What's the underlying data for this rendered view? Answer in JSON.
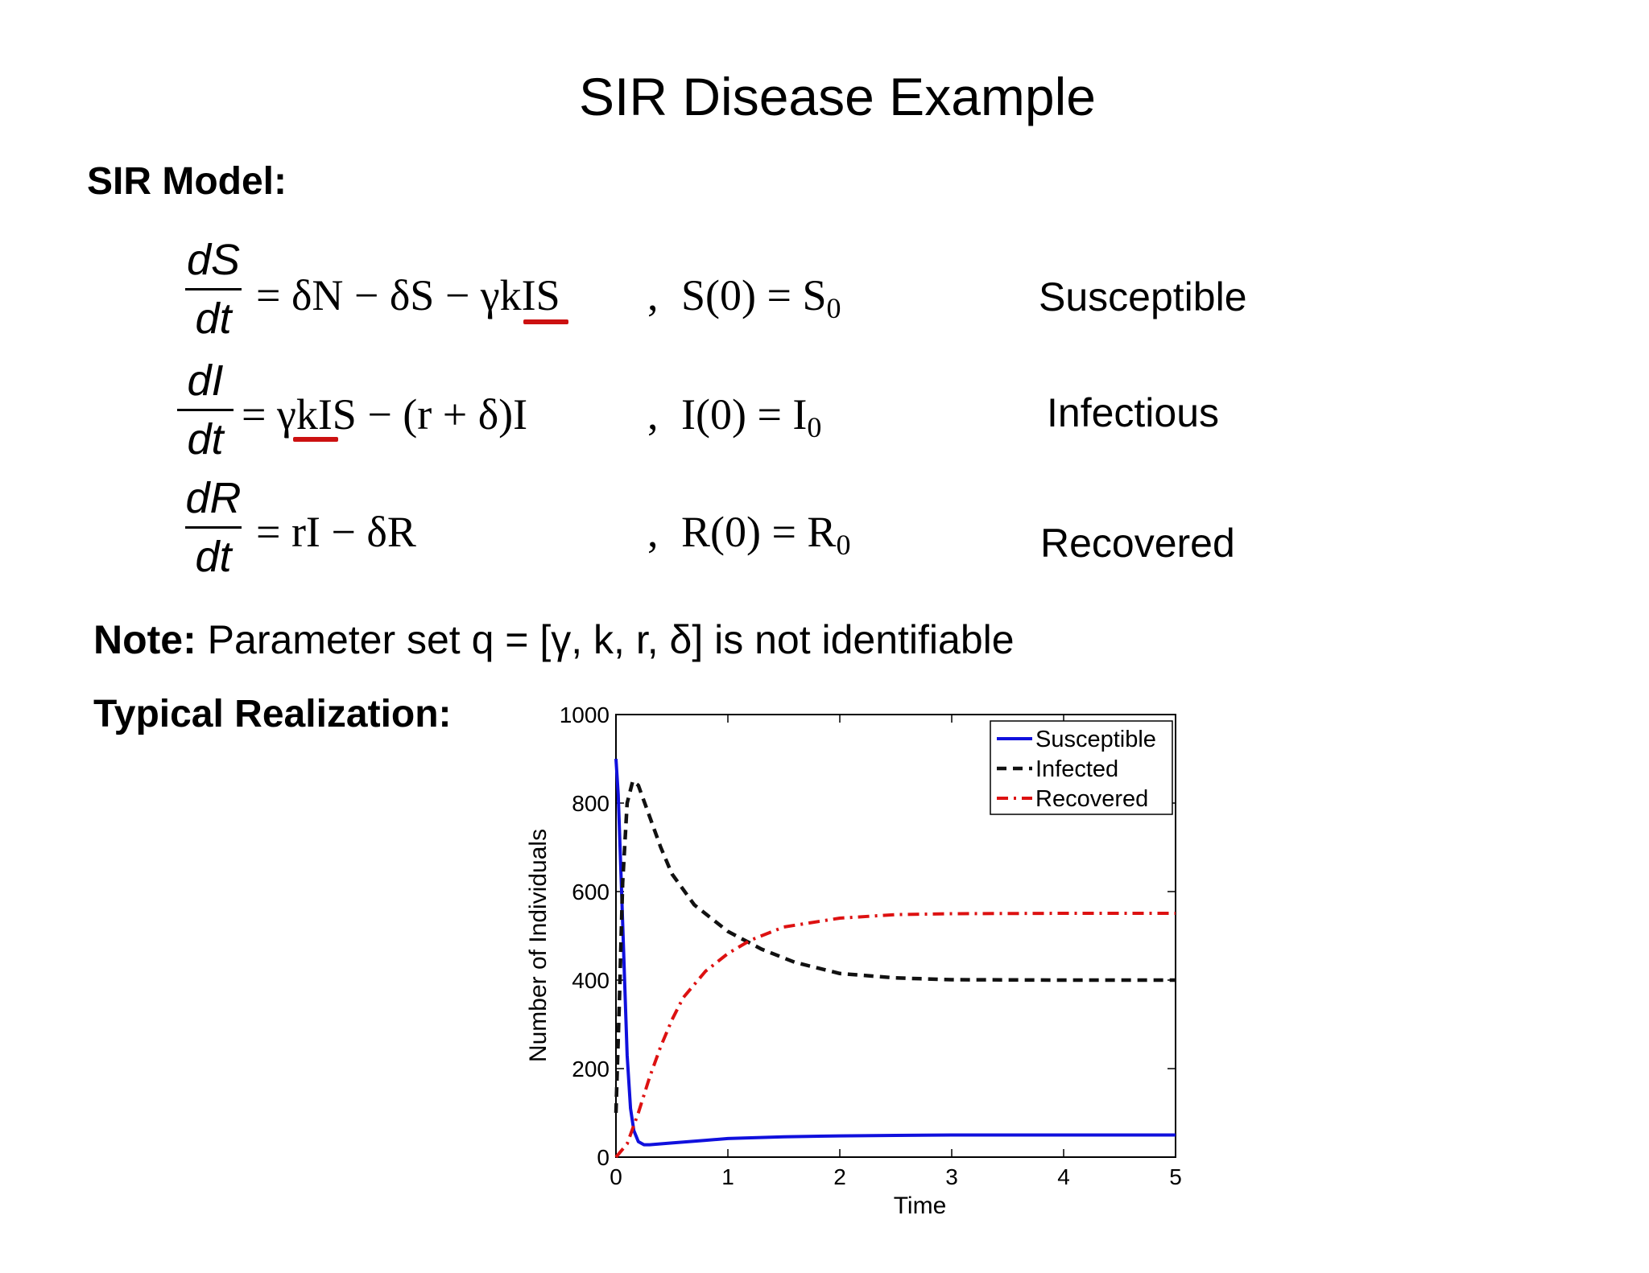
{
  "title": "SIR Disease Example",
  "model_heading": "SIR Model:",
  "equations": [
    {
      "num": "dS",
      "den": "dt",
      "rhs": "= δN − δS − γkIS",
      "ic_left": "S(0) = S",
      "ic_sub": "0",
      "label": "Susceptible"
    },
    {
      "num": "dI",
      "den": "dt",
      "rhs": "= γkIS − (r + δ)I",
      "ic_left": "I(0) = I",
      "ic_sub": "0",
      "label": "Infectious"
    },
    {
      "num": "dR",
      "den": "dt",
      "rhs": "= rI − δR",
      "ic_left": "R(0) = R",
      "ic_sub": "0",
      "label": "Recovered"
    }
  ],
  "separator": ",",
  "note": {
    "bold": "Note:",
    "text": "Parameter set q = [γ, k, r, δ] is not identifiable"
  },
  "realization_heading": "Typical Realization:",
  "colors": {
    "susceptible": "#1010dd",
    "infected": "#111111",
    "recovered": "#dd1111",
    "underline": "#cc1111"
  },
  "chart_data": {
    "type": "line",
    "xlabel": "Time",
    "ylabel": "Number of Individuals",
    "xlim": [
      0,
      5
    ],
    "ylim": [
      0,
      1000
    ],
    "xticks": [
      0,
      1,
      2,
      3,
      4,
      5
    ],
    "yticks": [
      0,
      200,
      400,
      600,
      800,
      1000
    ],
    "legend_position": "top-right",
    "series": [
      {
        "name": "Susceptible",
        "style": "solid",
        "color": "#1010dd",
        "x": [
          0,
          0.02,
          0.05,
          0.08,
          0.1,
          0.13,
          0.16,
          0.2,
          0.25,
          0.3,
          0.5,
          0.8,
          1,
          1.5,
          2,
          2.5,
          3,
          4,
          5
        ],
        "y": [
          900,
          820,
          600,
          380,
          230,
          110,
          60,
          35,
          28,
          28,
          32,
          38,
          42,
          46,
          48,
          49,
          50,
          50,
          50
        ]
      },
      {
        "name": "Infected",
        "style": "dashed",
        "color": "#111111",
        "x": [
          0,
          0.03,
          0.06,
          0.1,
          0.15,
          0.2,
          0.3,
          0.4,
          0.5,
          0.7,
          1,
          1.3,
          1.6,
          2,
          2.5,
          3,
          4,
          5
        ],
        "y": [
          100,
          350,
          620,
          800,
          850,
          840,
          770,
          700,
          640,
          570,
          510,
          470,
          440,
          415,
          405,
          401,
          400,
          400
        ]
      },
      {
        "name": "Recovered",
        "style": "dashdot",
        "color": "#dd1111",
        "x": [
          0,
          0.1,
          0.2,
          0.3,
          0.4,
          0.5,
          0.6,
          0.8,
          1,
          1.2,
          1.5,
          2,
          2.5,
          3,
          4,
          5
        ],
        "y": [
          0,
          30,
          100,
          180,
          250,
          310,
          360,
          420,
          460,
          490,
          520,
          540,
          548,
          550,
          551,
          551
        ]
      }
    ]
  }
}
